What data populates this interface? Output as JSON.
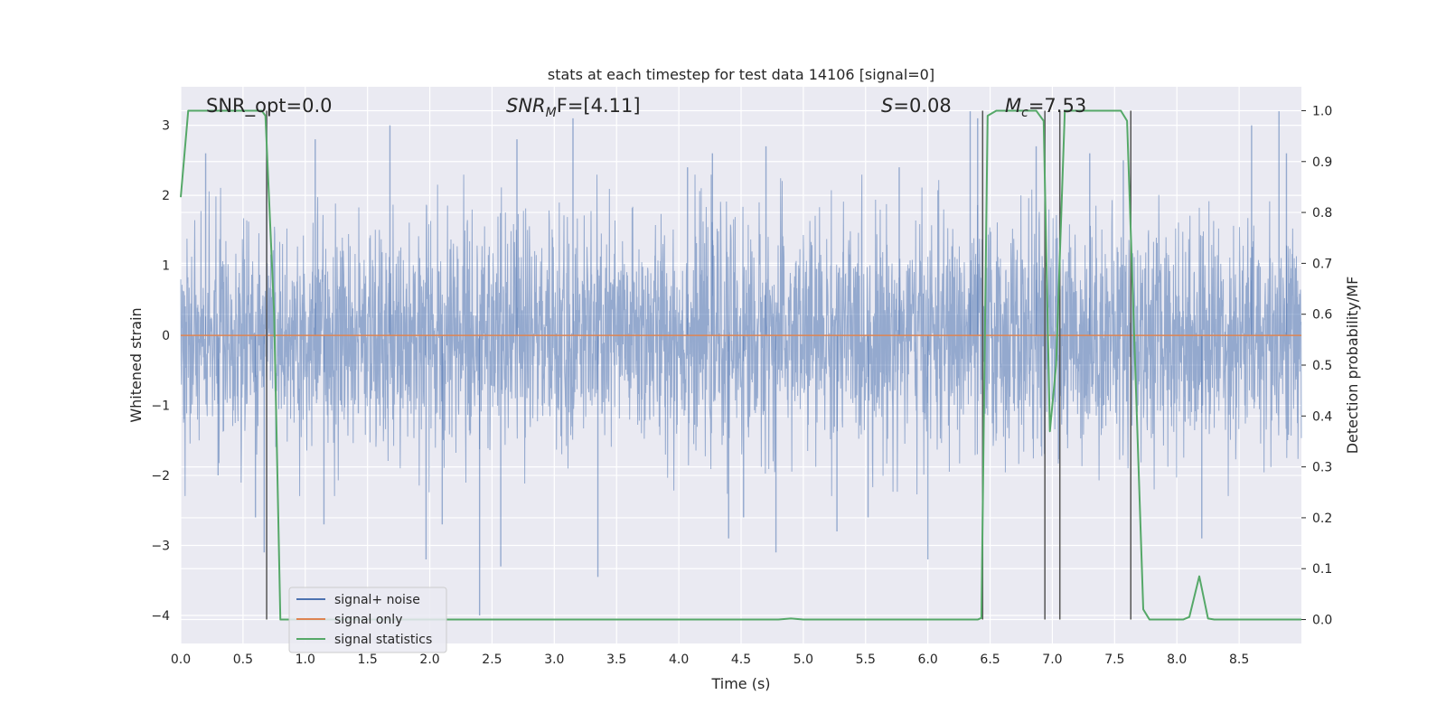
{
  "chart_data": {
    "type": "line",
    "title": "stats at each timestep for test data 14106 [signal=0]",
    "xlabel": "Time (s)",
    "ylabel": "Whitened strain",
    "y2label": "Detection probability/MF",
    "xlim": [
      0.0,
      9.0
    ],
    "ylim": [
      -4.4,
      3.55
    ],
    "y2lim": [
      -0.047,
      1.047
    ],
    "x_ticks": [
      "0.0",
      "0.5",
      "1.0",
      "1.5",
      "2.0",
      "2.5",
      "3.0",
      "3.5",
      "4.0",
      "4.5",
      "5.0",
      "5.5",
      "6.0",
      "6.5",
      "7.0",
      "7.5",
      "8.0",
      "8.5"
    ],
    "x_tick_values": [
      0.0,
      0.5,
      1.0,
      1.5,
      2.0,
      2.5,
      3.0,
      3.5,
      4.0,
      4.5,
      5.0,
      5.5,
      6.0,
      6.5,
      7.0,
      7.5,
      8.0,
      8.5
    ],
    "y_ticks": [
      "3",
      "2",
      "1",
      "0",
      "−1",
      "−2",
      "−3",
      "−4"
    ],
    "y_tick_values": [
      3,
      2,
      1,
      0,
      -1,
      -2,
      -3,
      -4
    ],
    "y2_ticks": [
      "1.0",
      "0.9",
      "0.8",
      "0.7",
      "0.6",
      "0.5",
      "0.4",
      "0.3",
      "0.2",
      "0.1",
      "0.0"
    ],
    "y2_tick_values": [
      1.0,
      0.9,
      0.8,
      0.7,
      0.6,
      0.5,
      0.4,
      0.3,
      0.2,
      0.1,
      0.0
    ],
    "grid": true,
    "legend_placement": "lower-left",
    "annotations": {
      "snr_opt": "SNR_opt=0.0",
      "snr_mf_base": "SNR",
      "snr_mf_sub": "M",
      "snr_mf_rest": "F=[4.11]",
      "s_label": "S",
      "s_rest": "=0.08",
      "mc_base": "M",
      "mc_sub": "c",
      "mc_rest": "=7.53"
    },
    "series": [
      {
        "name": "signal+ noise",
        "color": "#4c72b0",
        "kind": "noise",
        "typical_abs_amplitude": 1.7,
        "spikes": [
          {
            "x": 0.2,
            "y": 2.6
          },
          {
            "x": 0.3,
            "y": -2.0
          },
          {
            "x": 0.6,
            "y": -2.6
          },
          {
            "x": 0.67,
            "y": -3.1
          },
          {
            "x": 0.69,
            "y": 3.1
          },
          {
            "x": 1.08,
            "y": 2.8
          },
          {
            "x": 1.15,
            "y": -2.7
          },
          {
            "x": 1.68,
            "y": 3.0
          },
          {
            "x": 1.97,
            "y": -3.2
          },
          {
            "x": 2.1,
            "y": -2.7
          },
          {
            "x": 2.4,
            "y": -4.0
          },
          {
            "x": 2.57,
            "y": -3.3
          },
          {
            "x": 2.7,
            "y": 2.8
          },
          {
            "x": 3.15,
            "y": 3.1
          },
          {
            "x": 3.35,
            "y": -3.45
          },
          {
            "x": 4.07,
            "y": 2.4
          },
          {
            "x": 4.27,
            "y": 2.6
          },
          {
            "x": 4.4,
            "y": -2.9
          },
          {
            "x": 4.52,
            "y": -2.6
          },
          {
            "x": 4.7,
            "y": 2.7
          },
          {
            "x": 4.78,
            "y": -3.1
          },
          {
            "x": 5.27,
            "y": -2.8
          },
          {
            "x": 5.52,
            "y": -2.6
          },
          {
            "x": 5.77,
            "y": 2.4
          },
          {
            "x": 6.0,
            "y": -3.2
          },
          {
            "x": 6.34,
            "y": 3.2
          },
          {
            "x": 6.4,
            "y": 3.1
          },
          {
            "x": 6.87,
            "y": 2.7
          },
          {
            "x": 7.3,
            "y": 2.6
          },
          {
            "x": 7.57,
            "y": 2.5
          },
          {
            "x": 8.2,
            "y": -2.9
          },
          {
            "x": 8.6,
            "y": 3.0
          },
          {
            "x": 8.82,
            "y": 3.2
          },
          {
            "x": 8.88,
            "y": 2.6
          }
        ]
      },
      {
        "name": "signal only",
        "color": "#dd8452",
        "points": [
          [
            0.0,
            0.0
          ],
          [
            9.0,
            0.0
          ]
        ]
      },
      {
        "name": "signal statistics",
        "color": "#55a868",
        "axis": "right",
        "points": [
          [
            0.0,
            0.83
          ],
          [
            0.06,
            1.0
          ],
          [
            0.1,
            1.0
          ],
          [
            0.65,
            1.0
          ],
          [
            0.68,
            0.99
          ],
          [
            0.75,
            0.6
          ],
          [
            0.8,
            0.0
          ],
          [
            4.8,
            0.0
          ],
          [
            4.9,
            0.002
          ],
          [
            5.0,
            0.0
          ],
          [
            6.4,
            0.0
          ],
          [
            6.43,
            0.003
          ],
          [
            6.48,
            0.99
          ],
          [
            6.55,
            1.0
          ],
          [
            6.87,
            1.0
          ],
          [
            6.93,
            0.98
          ],
          [
            6.98,
            0.37
          ],
          [
            7.03,
            0.5
          ],
          [
            7.1,
            1.0
          ],
          [
            7.55,
            1.0
          ],
          [
            7.6,
            0.98
          ],
          [
            7.73,
            0.02
          ],
          [
            7.78,
            0.0
          ],
          [
            8.05,
            0.0
          ],
          [
            8.1,
            0.005
          ],
          [
            8.18,
            0.085
          ],
          [
            8.25,
            0.002
          ],
          [
            8.3,
            0.0
          ],
          [
            9.0,
            0.0
          ]
        ]
      }
    ],
    "vertical_lines": [
      0.69,
      6.44,
      6.94,
      7.06,
      7.63
    ],
    "vertical_line_color": "#555555"
  }
}
